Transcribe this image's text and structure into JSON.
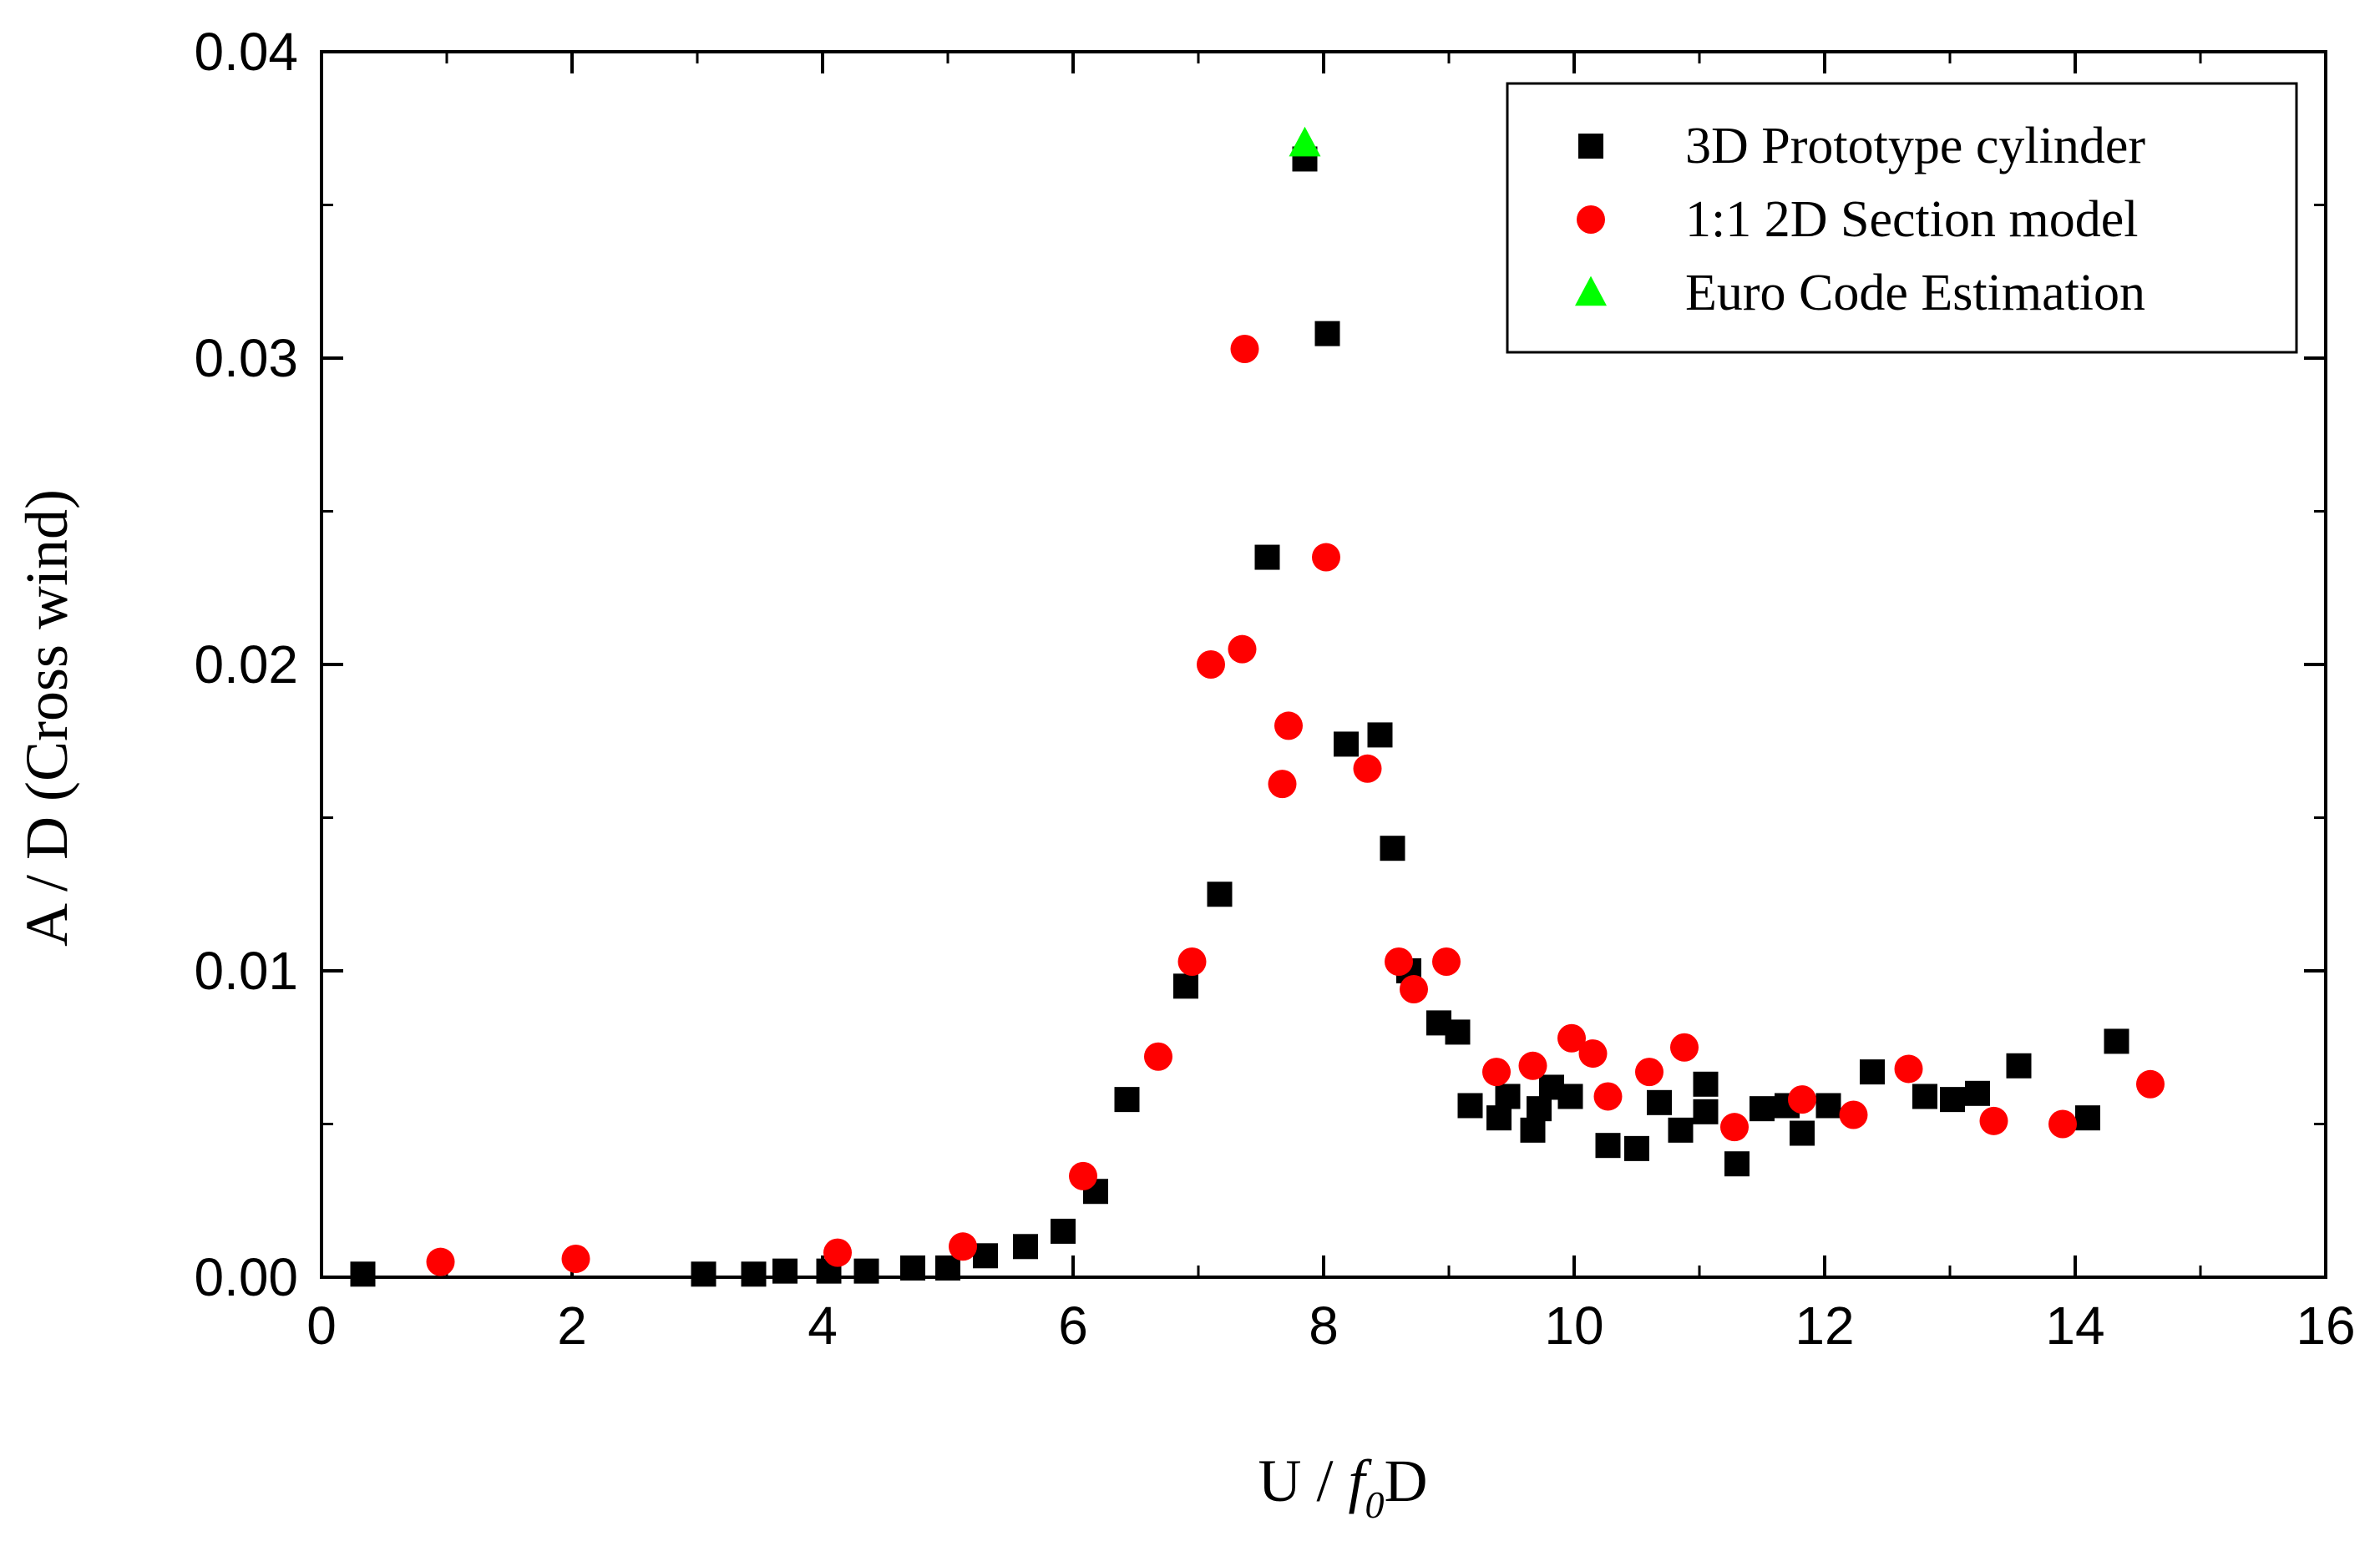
{
  "chart_data": {
    "type": "scatter",
    "title": "",
    "xlabel": "U / f0D",
    "xlabel_parts": {
      "prefix": "U / ",
      "italic": "f",
      "subscript": "0",
      "suffix": "D"
    },
    "ylabel": "A / D (Cross wind)",
    "xlim": [
      0,
      16
    ],
    "ylim": [
      0,
      0.04
    ],
    "x_ticks": [
      0,
      2,
      4,
      6,
      8,
      10,
      12,
      14,
      16
    ],
    "x_tick_labels": [
      "0",
      "2",
      "4",
      "6",
      "8",
      "10",
      "12",
      "14",
      "16"
    ],
    "y_ticks": [
      0,
      0.01,
      0.02,
      0.03,
      0.04
    ],
    "y_tick_labels": [
      "0.00",
      "0.01",
      "0.02",
      "0.03",
      "0.04"
    ],
    "grid": false,
    "legend_position": "top-right",
    "series": [
      {
        "name": "3D Prototype cylinder",
        "marker": "square",
        "color": "#000000",
        "points": [
          [
            0.33,
            0.0001
          ],
          [
            3.05,
            0.0001
          ],
          [
            3.45,
            0.0001
          ],
          [
            3.7,
            0.0002
          ],
          [
            4.05,
            0.0002
          ],
          [
            4.35,
            0.0002
          ],
          [
            4.72,
            0.0003
          ],
          [
            5.0,
            0.0003
          ],
          [
            5.3,
            0.0007
          ],
          [
            5.62,
            0.001
          ],
          [
            5.92,
            0.0015
          ],
          [
            6.18,
            0.0028
          ],
          [
            6.43,
            0.0058
          ],
          [
            6.9,
            0.0095
          ],
          [
            7.17,
            0.0125
          ],
          [
            7.55,
            0.0235
          ],
          [
            7.85,
            0.0365
          ],
          [
            8.03,
            0.0308
          ],
          [
            8.18,
            0.0174
          ],
          [
            8.45,
            0.0177
          ],
          [
            8.55,
            0.014
          ],
          [
            8.68,
            0.01
          ],
          [
            8.92,
            0.0083
          ],
          [
            9.07,
            0.008
          ],
          [
            9.17,
            0.0056
          ],
          [
            9.4,
            0.0052
          ],
          [
            9.47,
            0.0059
          ],
          [
            9.67,
            0.0048
          ],
          [
            9.72,
            0.0055
          ],
          [
            9.82,
            0.0062
          ],
          [
            9.97,
            0.0059
          ],
          [
            10.27,
            0.0043
          ],
          [
            10.5,
            0.0042
          ],
          [
            10.68,
            0.0057
          ],
          [
            10.85,
            0.0048
          ],
          [
            11.05,
            0.0063
          ],
          [
            11.05,
            0.0054
          ],
          [
            11.3,
            0.0037
          ],
          [
            11.5,
            0.0055
          ],
          [
            11.7,
            0.0056
          ],
          [
            11.82,
            0.0047
          ],
          [
            12.03,
            0.0056
          ],
          [
            12.38,
            0.0067
          ],
          [
            12.8,
            0.0059
          ],
          [
            13.02,
            0.0058
          ],
          [
            13.22,
            0.006
          ],
          [
            13.55,
            0.0069
          ],
          [
            14.1,
            0.0052
          ],
          [
            14.33,
            0.0077
          ]
        ]
      },
      {
        "name": "1:1 2D Section model",
        "marker": "circle",
        "color": "#ff0000",
        "points": [
          [
            0.95,
            0.0005
          ],
          [
            2.03,
            0.0006
          ],
          [
            4.12,
            0.0008
          ],
          [
            5.12,
            0.001
          ],
          [
            6.08,
            0.0033
          ],
          [
            6.68,
            0.0072
          ],
          [
            6.95,
            0.0103
          ],
          [
            7.1,
            0.02
          ],
          [
            7.35,
            0.0205
          ],
          [
            7.37,
            0.0303
          ],
          [
            7.67,
            0.0161
          ],
          [
            7.72,
            0.018
          ],
          [
            8.02,
            0.0235
          ],
          [
            8.35,
            0.0166
          ],
          [
            8.6,
            0.0103
          ],
          [
            8.72,
            0.0094
          ],
          [
            8.98,
            0.0103
          ],
          [
            9.38,
            0.0067
          ],
          [
            9.67,
            0.0069
          ],
          [
            9.98,
            0.0078
          ],
          [
            10.15,
            0.0073
          ],
          [
            10.27,
            0.0059
          ],
          [
            10.6,
            0.0067
          ],
          [
            10.88,
            0.0075
          ],
          [
            11.28,
            0.0049
          ],
          [
            11.82,
            0.0058
          ],
          [
            12.23,
            0.0053
          ],
          [
            12.67,
            0.0068
          ],
          [
            13.35,
            0.0051
          ],
          [
            13.9,
            0.005
          ],
          [
            14.6,
            0.0063
          ]
        ]
      },
      {
        "name": "Euro Code Estimation",
        "marker": "triangle",
        "color": "#00ff00",
        "points": [
          [
            7.85,
            0.037
          ]
        ]
      }
    ]
  }
}
